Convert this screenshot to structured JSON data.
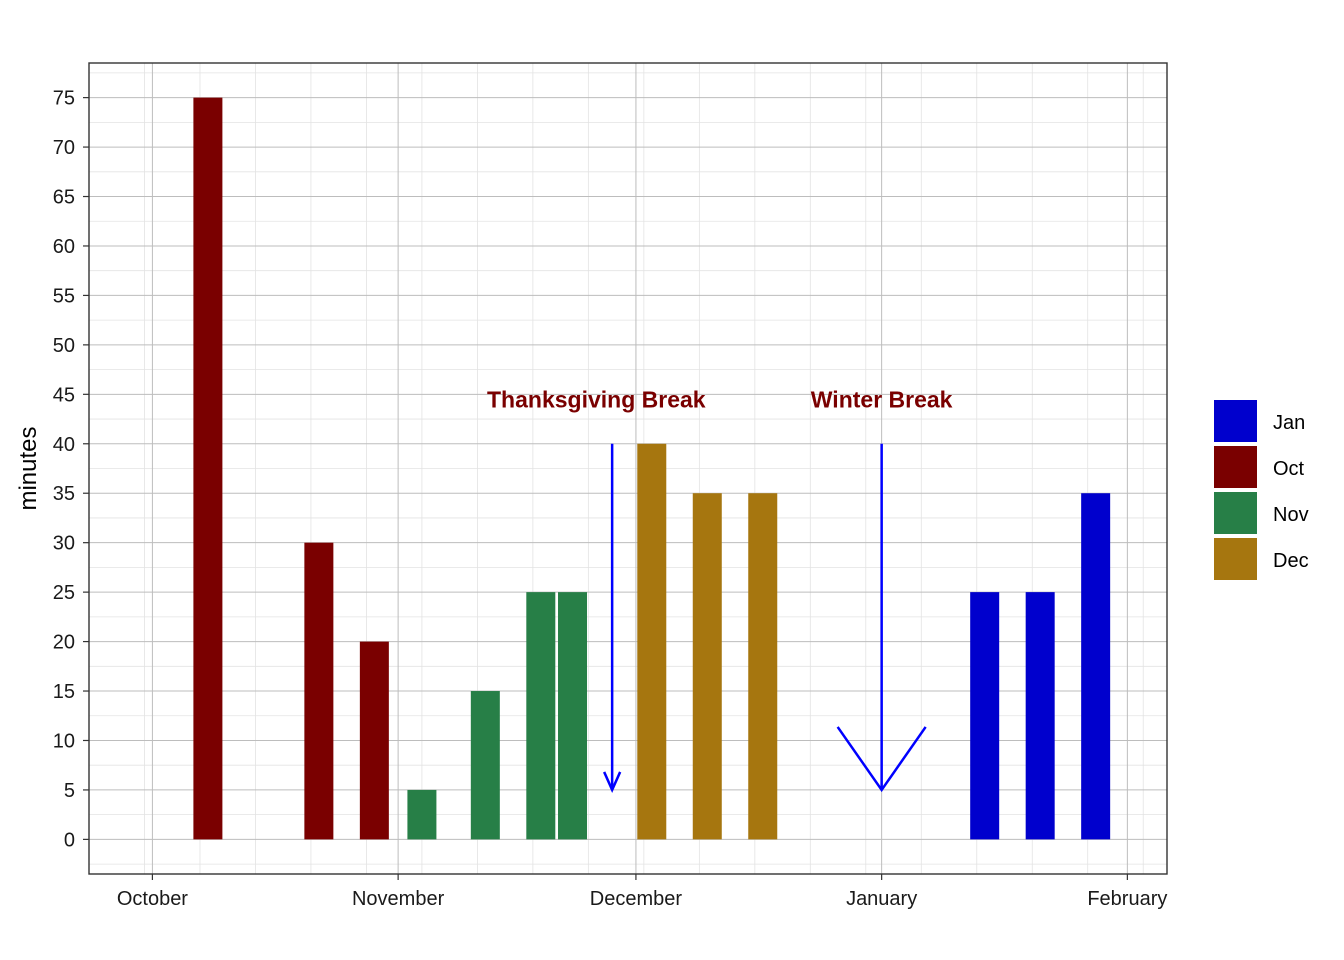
{
  "chart_data": {
    "type": "bar",
    "title": "",
    "xlabel": "",
    "ylabel": "minutes",
    "ylim": [
      -3.5,
      78.5
    ],
    "yticks": [
      0,
      5,
      10,
      15,
      20,
      25,
      30,
      35,
      40,
      45,
      50,
      55,
      60,
      65,
      70,
      75
    ],
    "xlim": [
      "2019-09-23",
      "2020-02-06"
    ],
    "xticks": [
      {
        "date": "2019-10-01",
        "label": "October"
      },
      {
        "date": "2019-11-01",
        "label": "November"
      },
      {
        "date": "2019-12-01",
        "label": "December"
      },
      {
        "date": "2020-01-01",
        "label": "January"
      },
      {
        "date": "2020-02-01",
        "label": "February"
      }
    ],
    "grid": true,
    "legend": {
      "position": "right",
      "entries": [
        "Jan",
        "Oct",
        "Nov",
        "Dec"
      ]
    },
    "colors": {
      "Jan": "#0000CD",
      "Oct": "#7A0000",
      "Nov": "#277F47",
      "Dec": "#A6760F"
    },
    "series": [
      {
        "name": "Oct",
        "points": [
          {
            "date": "2019-10-08",
            "value": 75
          },
          {
            "date": "2019-10-22",
            "value": 30
          },
          {
            "date": "2019-10-29",
            "value": 20
          }
        ]
      },
      {
        "name": "Nov",
        "points": [
          {
            "date": "2019-11-04",
            "value": 5
          },
          {
            "date": "2019-11-12",
            "value": 15
          },
          {
            "date": "2019-11-19",
            "value": 25
          },
          {
            "date": "2019-11-23",
            "value": 25
          }
        ]
      },
      {
        "name": "Dec",
        "points": [
          {
            "date": "2019-12-03",
            "value": 40
          },
          {
            "date": "2019-12-10",
            "value": 35
          },
          {
            "date": "2019-12-17",
            "value": 35
          }
        ]
      },
      {
        "name": "Jan",
        "points": [
          {
            "date": "2020-01-14",
            "value": 25
          },
          {
            "date": "2020-01-21",
            "value": 25
          },
          {
            "date": "2020-01-28",
            "value": 35
          }
        ]
      }
    ],
    "annotations": [
      {
        "text": "Thanksgiving Break",
        "color": "#7A0000",
        "label_date": "2019-11-26",
        "label_y": 44.5,
        "arrow": {
          "date": "2019-11-28",
          "from": 40,
          "to": 5,
          "head": "small"
        }
      },
      {
        "text": "Winter Break",
        "color": "#7A0000",
        "label_date": "2020-01-01",
        "label_y": 44.5,
        "arrow": {
          "date": "2020-01-01",
          "from": 40,
          "to": 5,
          "head": "large"
        }
      }
    ],
    "arrow_color": "#0000FF"
  }
}
